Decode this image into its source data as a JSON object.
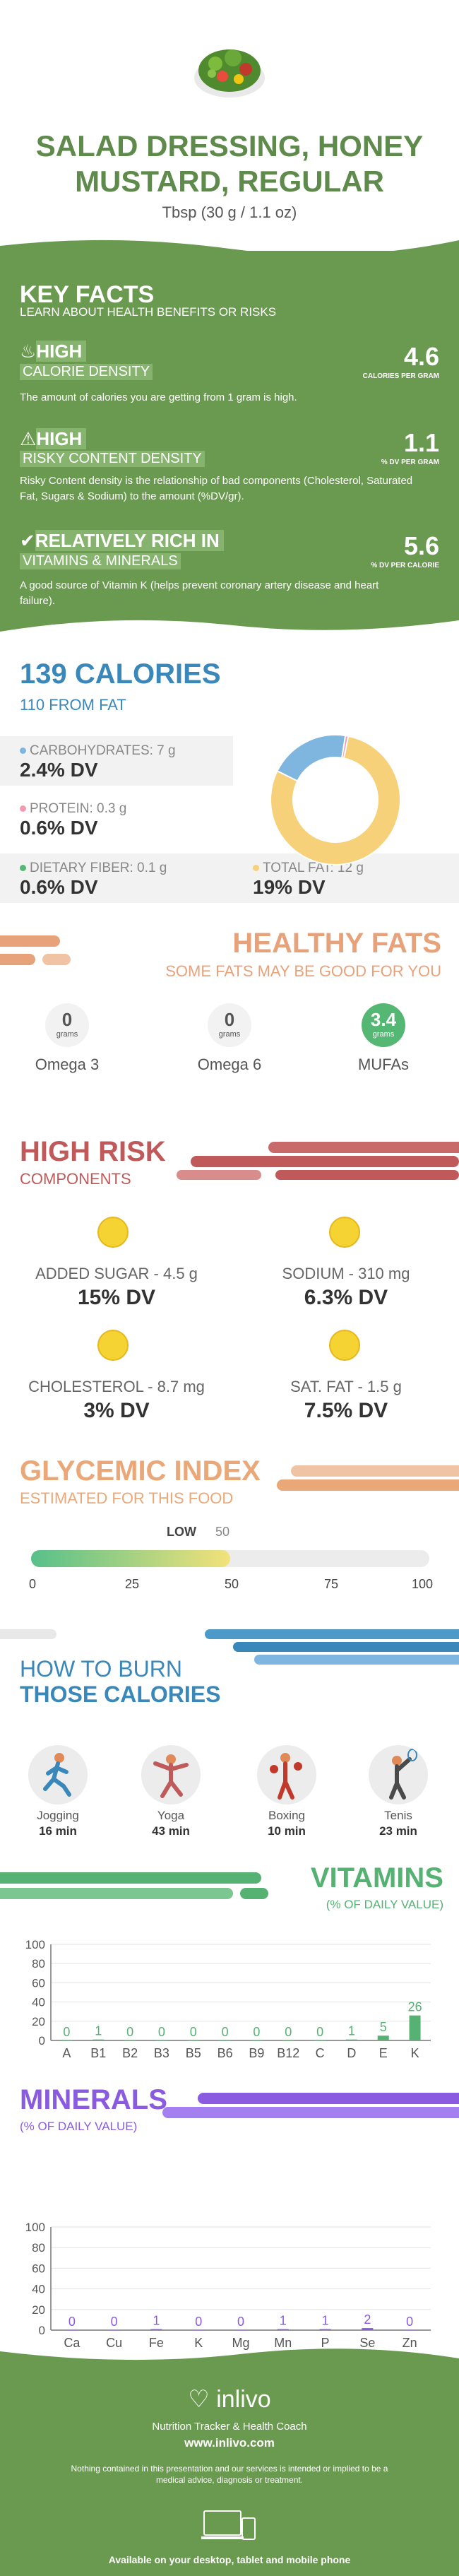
{
  "header": {
    "title": "SALAD DRESSING, HONEY MUSTARD, REGULAR",
    "serving": "Tbsp (30 g / 1.1 oz)"
  },
  "key_facts": {
    "title": "KEY FACTS",
    "subtitle": "LEARN ABOUT HEALTH BENEFITS OR RISKS",
    "items": [
      {
        "level": "HIGH",
        "name": "CALORIE DENSITY",
        "value": "4.6",
        "unit": "CALORIES PER GRAM",
        "desc": "The amount of calories you are getting from 1 gram is high.",
        "icon": "flame-icon"
      },
      {
        "level": "HIGH",
        "name": "RISKY CONTENT DENSITY",
        "value": "1.1",
        "unit": "% DV PER GRAM",
        "desc": "Risky Content density is the relationship of bad components (Cholesterol, Saturated Fat, Sugars & Sodium) to the amount (%DV/gr).",
        "icon": "warning-icon"
      },
      {
        "level": "RELATIVELY RICH  IN",
        "name": "VITAMINS & MINERALS",
        "value": "5.6",
        "unit": "% DV PER CALORIE",
        "desc": "A good source of Vitamin K (helps prevent coronary artery disease and heart failure).",
        "icon": "check-icon"
      }
    ]
  },
  "calories": {
    "title": "139 CALORIES",
    "from_fat": "110 FROM FAT",
    "macros": [
      {
        "label": "CARBOHYDRATES: 7 g",
        "dv": "2.4% DV",
        "color": "#7fb6e0"
      },
      {
        "label": "PROTEIN: 0.3 g",
        "dv": "0.6% DV",
        "color": "#f29bb1"
      },
      {
        "label": "DIETARY FIBER: 0.1 g",
        "dv": "0.6% DV",
        "color": "#54b774"
      },
      {
        "label": "TOTAL FAT: 12 g",
        "dv": "19% DV",
        "color": "#f7d07a"
      }
    ],
    "donut": {
      "fat": 110,
      "carbs": 28,
      "protein": 1
    }
  },
  "healthy_fats": {
    "title": "HEALTHY FATS",
    "subtitle": "SOME FATS MAY BE GOOD FOR YOU",
    "unit": "grams",
    "items": [
      {
        "name": "Omega 3",
        "value": "0"
      },
      {
        "name": "Omega 6",
        "value": "0"
      },
      {
        "name": "MUFAs",
        "value": "3.4"
      }
    ]
  },
  "high_risk": {
    "title": "HIGH RISK",
    "subtitle": "COMPONENTS",
    "items": [
      {
        "label": "ADDED SUGAR - 4.5 g",
        "dv": "15% DV"
      },
      {
        "label": "SODIUM - 310 mg",
        "dv": "6.3% DV"
      },
      {
        "label": "CHOLESTEROL - 8.7 mg",
        "dv": "3% DV"
      },
      {
        "label": "SAT. FAT - 1.5 g",
        "dv": "7.5% DV"
      }
    ]
  },
  "glycemic": {
    "title": "GLYCEMIC INDEX",
    "subtitle": "ESTIMATED FOR THIS FOOD",
    "level": "LOW",
    "value": "50",
    "value_num": 50,
    "ticks": [
      "0",
      "25",
      "50",
      "75",
      "100"
    ]
  },
  "burn": {
    "title1": "HOW TO BURN",
    "title2": "THOSE CALORIES",
    "activities": [
      {
        "name": "Jogging",
        "minutes": "16 min",
        "icon": "jogging-icon"
      },
      {
        "name": "Yoga",
        "minutes": "43 min",
        "icon": "yoga-icon"
      },
      {
        "name": "Boxing",
        "minutes": "10 min",
        "icon": "boxing-icon"
      },
      {
        "name": "Tenis",
        "minutes": "23 min",
        "icon": "tennis-icon"
      }
    ]
  },
  "chart_data": [
    {
      "type": "bar",
      "title": "VITAMINS",
      "subtitle": "(% OF DAILY VALUE)",
      "categories": [
        "A",
        "B1",
        "B2",
        "B3",
        "B5",
        "B6",
        "B9",
        "B12",
        "C",
        "D",
        "E",
        "K"
      ],
      "values": [
        0,
        1,
        0,
        0,
        0,
        0,
        0,
        0,
        0,
        1,
        5,
        26
      ],
      "yticks": [
        "0",
        "20",
        "40",
        "60",
        "80",
        "100"
      ],
      "ylim": [
        0,
        100
      ],
      "color": "#55b273"
    },
    {
      "type": "bar",
      "title": "MINERALS",
      "subtitle": "(% OF DAILY VALUE)",
      "categories": [
        "Ca",
        "Cu",
        "Fe",
        "K",
        "Mg",
        "Mn",
        "P",
        "Se",
        "Zn"
      ],
      "values": [
        0,
        0,
        1,
        0,
        0,
        1,
        1,
        2,
        0
      ],
      "yticks": [
        "0",
        "20",
        "40",
        "60",
        "80",
        "100"
      ],
      "ylim": [
        0,
        100
      ],
      "color": "#8a5be0"
    }
  ],
  "footer": {
    "brand": "inlivo",
    "tagline": "Nutrition Tracker & Health Coach",
    "url": "www.inlivo.com",
    "disclaimer": "Nothing contained in this presentation and our services is intended or implied to be a medical advice, diagnosis or treatment.",
    "available": "Available on your desktop, tablet and mobile phone"
  }
}
